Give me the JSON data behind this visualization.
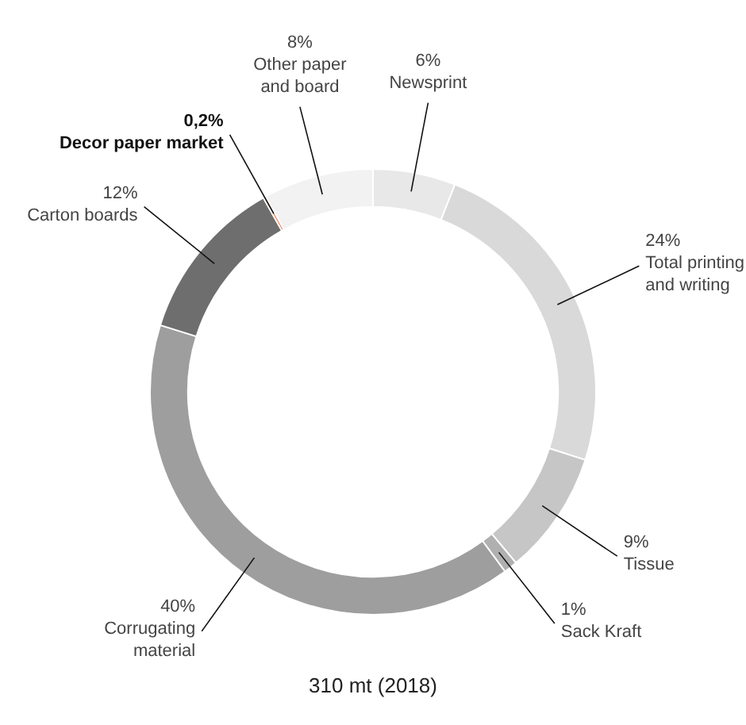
{
  "chart_data": {
    "type": "donut",
    "title": "310 mt (2018)",
    "categories": [
      "Newsprint",
      "Total printing and writing",
      "Tissue",
      "Sack Kraft",
      "Corrugating material",
      "Carton boards",
      "Decor paper market",
      "Other paper and board"
    ],
    "values": [
      6,
      24,
      9,
      1,
      40,
      12,
      0.2,
      8
    ],
    "value_labels": [
      "6%",
      "24%",
      "9%",
      "1%",
      "40%",
      "12%",
      "0,2%",
      "8%"
    ],
    "colors": [
      "#e8e8e8",
      "#d9d9d9",
      "#c6c6c6",
      "#b0b0b0",
      "#9e9e9e",
      "#6e6e6e",
      "#f26b3a",
      "#f2f2f2"
    ],
    "legend": false
  }
}
